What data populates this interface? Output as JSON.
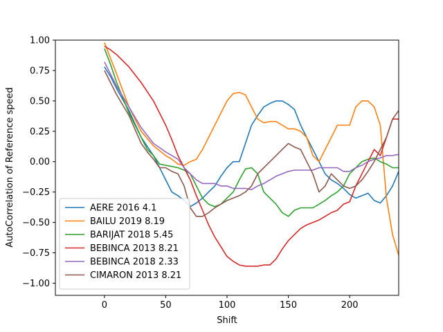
{
  "chart_data": {
    "type": "line",
    "title": "",
    "xlabel": "Shift",
    "ylabel": "AutoCorrelation of Reference speed",
    "xlim": [
      -40,
      240
    ],
    "ylim": [
      -1.1,
      1.0
    ],
    "xticks": [
      0,
      50,
      100,
      150,
      200
    ],
    "yticks": [
      -1.0,
      -0.75,
      -0.5,
      -0.25,
      0.0,
      0.25,
      0.5,
      0.75,
      1.0
    ],
    "ytick_labels": [
      "−1.00",
      "−0.75",
      "−0.50",
      "−0.25",
      "0.00",
      "0.25",
      "0.50",
      "0.75",
      "1.00"
    ],
    "grid": false,
    "legend_position": "lower-left",
    "series": [
      {
        "name": "AERE 2016 4.1",
        "color": "#1f77b4",
        "points": [
          [
            0,
            0.78
          ],
          [
            5,
            0.7
          ],
          [
            10,
            0.6
          ],
          [
            20,
            0.42
          ],
          [
            30,
            0.2
          ],
          [
            40,
            0.05
          ],
          [
            45,
            -0.05
          ],
          [
            50,
            -0.15
          ],
          [
            55,
            -0.25
          ],
          [
            60,
            -0.28
          ],
          [
            65,
            -0.32
          ],
          [
            70,
            -0.37
          ],
          [
            75,
            -0.34
          ],
          [
            80,
            -0.3
          ],
          [
            85,
            -0.25
          ],
          [
            90,
            -0.2
          ],
          [
            95,
            -0.12
          ],
          [
            100,
            -0.05
          ],
          [
            105,
            0.0
          ],
          [
            110,
            0.0
          ],
          [
            115,
            0.15
          ],
          [
            120,
            0.3
          ],
          [
            125,
            0.38
          ],
          [
            130,
            0.45
          ],
          [
            135,
            0.48
          ],
          [
            140,
            0.5
          ],
          [
            145,
            0.5
          ],
          [
            150,
            0.47
          ],
          [
            155,
            0.43
          ],
          [
            160,
            0.3
          ],
          [
            165,
            0.2
          ],
          [
            170,
            0.1
          ],
          [
            175,
            0.0
          ],
          [
            180,
            -0.1
          ],
          [
            185,
            -0.15
          ],
          [
            190,
            -0.18
          ],
          [
            195,
            -0.22
          ],
          [
            200,
            -0.27
          ],
          [
            205,
            -0.3
          ],
          [
            210,
            -0.28
          ],
          [
            215,
            -0.26
          ],
          [
            220,
            -0.32
          ],
          [
            225,
            -0.34
          ],
          [
            230,
            -0.28
          ],
          [
            235,
            -0.2
          ],
          [
            240,
            -0.08
          ]
        ]
      },
      {
        "name": "BAILU 2019 8.19",
        "color": "#ff7f0e",
        "points": [
          [
            0,
            0.98
          ],
          [
            5,
            0.85
          ],
          [
            10,
            0.72
          ],
          [
            20,
            0.45
          ],
          [
            30,
            0.25
          ],
          [
            40,
            0.13
          ],
          [
            50,
            0.05
          ],
          [
            55,
            0.02
          ],
          [
            60,
            -0.02
          ],
          [
            65,
            -0.03
          ],
          [
            70,
            0.0
          ],
          [
            75,
            0.02
          ],
          [
            80,
            0.1
          ],
          [
            85,
            0.2
          ],
          [
            90,
            0.3
          ],
          [
            95,
            0.4
          ],
          [
            100,
            0.5
          ],
          [
            105,
            0.56
          ],
          [
            110,
            0.57
          ],
          [
            115,
            0.55
          ],
          [
            120,
            0.45
          ],
          [
            125,
            0.35
          ],
          [
            130,
            0.32
          ],
          [
            135,
            0.33
          ],
          [
            140,
            0.33
          ],
          [
            145,
            0.3
          ],
          [
            150,
            0.27
          ],
          [
            155,
            0.27
          ],
          [
            160,
            0.25
          ],
          [
            165,
            0.2
          ],
          [
            170,
            0.05
          ],
          [
            175,
            0.0
          ],
          [
            180,
            0.1
          ],
          [
            185,
            0.2
          ],
          [
            190,
            0.3
          ],
          [
            195,
            0.3
          ],
          [
            200,
            0.3
          ],
          [
            205,
            0.45
          ],
          [
            210,
            0.5
          ],
          [
            215,
            0.5
          ],
          [
            220,
            0.45
          ],
          [
            225,
            0.3
          ],
          [
            230,
            -0.3
          ],
          [
            235,
            -0.6
          ],
          [
            240,
            -0.77
          ]
        ]
      },
      {
        "name": "BARIJAT 2018 5.45",
        "color": "#2ca02c",
        "points": [
          [
            0,
            0.93
          ],
          [
            5,
            0.8
          ],
          [
            10,
            0.65
          ],
          [
            20,
            0.4
          ],
          [
            30,
            0.2
          ],
          [
            35,
            0.1
          ],
          [
            40,
            0.05
          ],
          [
            45,
            -0.02
          ],
          [
            50,
            -0.03
          ],
          [
            55,
            -0.04
          ],
          [
            60,
            -0.05
          ],
          [
            65,
            -0.07
          ],
          [
            70,
            -0.1
          ],
          [
            75,
            -0.2
          ],
          [
            80,
            -0.3
          ],
          [
            85,
            -0.35
          ],
          [
            90,
            -0.37
          ],
          [
            95,
            -0.35
          ],
          [
            100,
            -0.3
          ],
          [
            105,
            -0.25
          ],
          [
            110,
            -0.15
          ],
          [
            115,
            -0.06
          ],
          [
            120,
            -0.05
          ],
          [
            125,
            -0.1
          ],
          [
            130,
            -0.25
          ],
          [
            135,
            -0.3
          ],
          [
            140,
            -0.35
          ],
          [
            145,
            -0.42
          ],
          [
            150,
            -0.45
          ],
          [
            155,
            -0.4
          ],
          [
            160,
            -0.38
          ],
          [
            165,
            -0.38
          ],
          [
            170,
            -0.38
          ],
          [
            175,
            -0.35
          ],
          [
            180,
            -0.32
          ],
          [
            185,
            -0.28
          ],
          [
            190,
            -0.25
          ],
          [
            195,
            -0.2
          ],
          [
            200,
            -0.1
          ],
          [
            205,
            -0.05
          ],
          [
            210,
            0.0
          ],
          [
            215,
            0.02
          ],
          [
            220,
            0.03
          ],
          [
            225,
            0.0
          ],
          [
            230,
            -0.02
          ],
          [
            235,
            -0.05
          ],
          [
            240,
            -0.05
          ]
        ]
      },
      {
        "name": "BEBINCA 2013 8.21",
        "color": "#d62728",
        "points": [
          [
            0,
            0.95
          ],
          [
            5,
            0.92
          ],
          [
            10,
            0.88
          ],
          [
            20,
            0.78
          ],
          [
            30,
            0.65
          ],
          [
            40,
            0.5
          ],
          [
            50,
            0.3
          ],
          [
            55,
            0.18
          ],
          [
            60,
            0.05
          ],
          [
            65,
            -0.05
          ],
          [
            70,
            -0.15
          ],
          [
            75,
            -0.28
          ],
          [
            80,
            -0.4
          ],
          [
            85,
            -0.52
          ],
          [
            90,
            -0.62
          ],
          [
            95,
            -0.7
          ],
          [
            100,
            -0.78
          ],
          [
            105,
            -0.82
          ],
          [
            110,
            -0.85
          ],
          [
            115,
            -0.86
          ],
          [
            120,
            -0.86
          ],
          [
            125,
            -0.86
          ],
          [
            130,
            -0.85
          ],
          [
            135,
            -0.85
          ],
          [
            140,
            -0.8
          ],
          [
            145,
            -0.72
          ],
          [
            150,
            -0.65
          ],
          [
            155,
            -0.6
          ],
          [
            160,
            -0.55
          ],
          [
            165,
            -0.52
          ],
          [
            170,
            -0.5
          ],
          [
            175,
            -0.48
          ],
          [
            180,
            -0.45
          ],
          [
            185,
            -0.42
          ],
          [
            190,
            -0.4
          ],
          [
            195,
            -0.35
          ],
          [
            200,
            -0.33
          ],
          [
            205,
            -0.2
          ],
          [
            210,
            -0.1
          ],
          [
            215,
            0.0
          ],
          [
            220,
            0.1
          ],
          [
            225,
            0.05
          ],
          [
            230,
            0.2
          ],
          [
            235,
            0.35
          ],
          [
            240,
            0.35
          ]
        ]
      },
      {
        "name": "BEBINCA 2018 2.33",
        "color": "#9467bd",
        "points": [
          [
            0,
            0.82
          ],
          [
            5,
            0.72
          ],
          [
            10,
            0.62
          ],
          [
            20,
            0.45
          ],
          [
            30,
            0.28
          ],
          [
            40,
            0.15
          ],
          [
            50,
            0.08
          ],
          [
            55,
            0.05
          ],
          [
            60,
            0.02
          ],
          [
            65,
            -0.05
          ],
          [
            70,
            -0.1
          ],
          [
            75,
            -0.15
          ],
          [
            80,
            -0.18
          ],
          [
            85,
            -0.18
          ],
          [
            90,
            -0.18
          ],
          [
            95,
            -0.2
          ],
          [
            100,
            -0.2
          ],
          [
            105,
            -0.22
          ],
          [
            110,
            -0.22
          ],
          [
            115,
            -0.22
          ],
          [
            120,
            -0.23
          ],
          [
            125,
            -0.2
          ],
          [
            130,
            -0.18
          ],
          [
            135,
            -0.15
          ],
          [
            140,
            -0.12
          ],
          [
            145,
            -0.1
          ],
          [
            150,
            -0.08
          ],
          [
            155,
            -0.07
          ],
          [
            160,
            -0.07
          ],
          [
            165,
            -0.07
          ],
          [
            170,
            -0.07
          ],
          [
            175,
            -0.05
          ],
          [
            180,
            -0.05
          ],
          [
            185,
            -0.05
          ],
          [
            190,
            -0.05
          ],
          [
            195,
            -0.08
          ],
          [
            200,
            -0.08
          ],
          [
            205,
            -0.05
          ],
          [
            210,
            -0.03
          ],
          [
            215,
            0.0
          ],
          [
            220,
            0.02
          ],
          [
            225,
            0.03
          ],
          [
            230,
            0.05
          ],
          [
            235,
            0.05
          ],
          [
            240,
            0.06
          ]
        ]
      },
      {
        "name": "CIMARON 2013 8.21",
        "color": "#8c564b",
        "points": [
          [
            0,
            0.75
          ],
          [
            5,
            0.65
          ],
          [
            10,
            0.55
          ],
          [
            20,
            0.38
          ],
          [
            30,
            0.15
          ],
          [
            35,
            0.08
          ],
          [
            40,
            0.02
          ],
          [
            45,
            -0.05
          ],
          [
            50,
            -0.05
          ],
          [
            55,
            -0.08
          ],
          [
            60,
            -0.1
          ],
          [
            65,
            -0.2
          ],
          [
            70,
            -0.38
          ],
          [
            75,
            -0.45
          ],
          [
            80,
            -0.45
          ],
          [
            85,
            -0.42
          ],
          [
            90,
            -0.38
          ],
          [
            95,
            -0.35
          ],
          [
            100,
            -0.32
          ],
          [
            105,
            -0.3
          ],
          [
            110,
            -0.28
          ],
          [
            115,
            -0.25
          ],
          [
            120,
            -0.2
          ],
          [
            125,
            -0.1
          ],
          [
            130,
            -0.05
          ],
          [
            135,
            0.0
          ],
          [
            140,
            0.05
          ],
          [
            145,
            0.1
          ],
          [
            150,
            0.15
          ],
          [
            155,
            0.12
          ],
          [
            160,
            0.1
          ],
          [
            165,
            0.0
          ],
          [
            170,
            -0.1
          ],
          [
            175,
            -0.25
          ],
          [
            180,
            -0.2
          ],
          [
            185,
            -0.1
          ],
          [
            190,
            -0.15
          ],
          [
            195,
            -0.2
          ],
          [
            200,
            -0.22
          ],
          [
            205,
            -0.2
          ],
          [
            210,
            -0.15
          ],
          [
            215,
            -0.08
          ],
          [
            220,
            0.0
          ],
          [
            225,
            0.1
          ],
          [
            230,
            0.2
          ],
          [
            235,
            0.35
          ],
          [
            240,
            0.42
          ]
        ]
      }
    ]
  }
}
